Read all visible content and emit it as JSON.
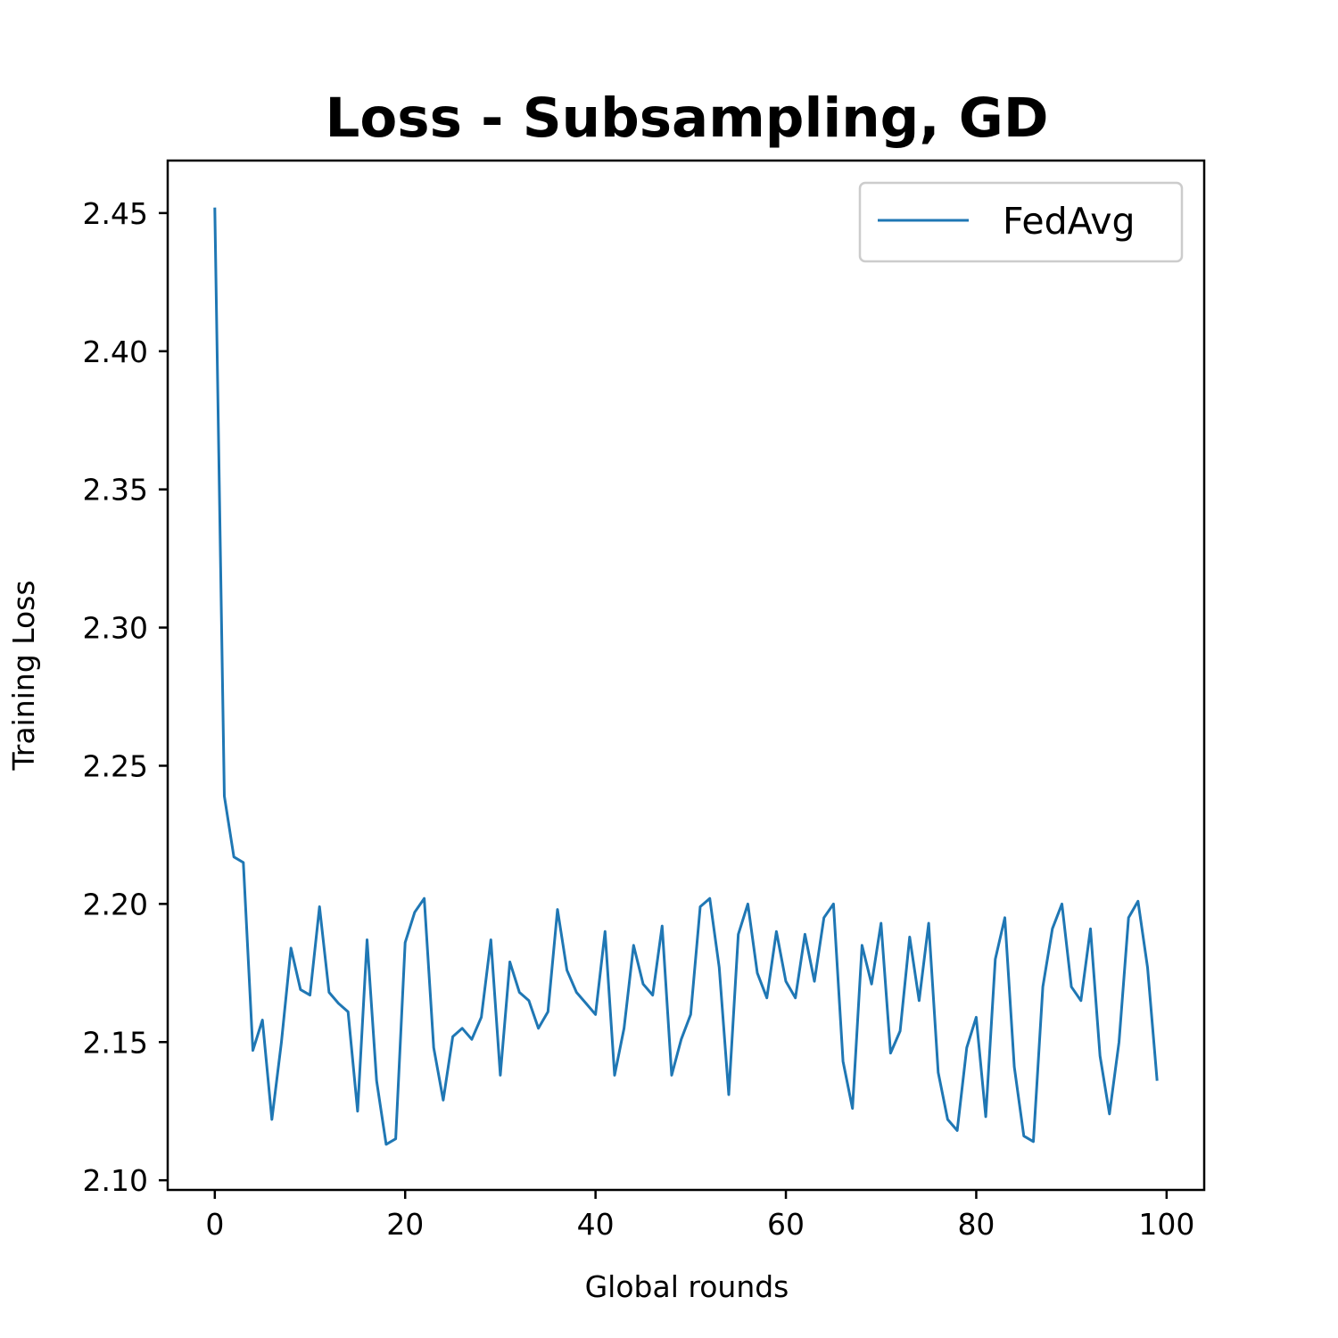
{
  "chart_data": {
    "type": "line",
    "title": "Loss - Subsampling, GD",
    "xlabel": "Global rounds",
    "ylabel": "Training Loss",
    "xlim": [
      -4.95,
      103.95
    ],
    "ylim": [
      2.0965,
      2.469
    ],
    "xticks": [
      0,
      20,
      40,
      60,
      80,
      100
    ],
    "xtick_labels": [
      "0",
      "20",
      "40",
      "60",
      "80",
      "100"
    ],
    "yticks": [
      2.1,
      2.15,
      2.2,
      2.25,
      2.3,
      2.35,
      2.4,
      2.45
    ],
    "ytick_labels": [
      "2.10",
      "2.15",
      "2.20",
      "2.25",
      "2.30",
      "2.35",
      "2.40",
      "2.45"
    ],
    "grid": false,
    "legend_position": "top-right",
    "series": [
      {
        "name": "FedAvg",
        "color": "#1f77b4",
        "x": [
          0,
          1,
          2,
          3,
          4,
          5,
          6,
          7,
          8,
          9,
          10,
          11,
          12,
          13,
          14,
          15,
          16,
          17,
          18,
          19,
          20,
          21,
          22,
          23,
          24,
          25,
          26,
          27,
          28,
          29,
          30,
          31,
          32,
          33,
          34,
          35,
          36,
          37,
          38,
          39,
          40,
          41,
          42,
          43,
          44,
          45,
          46,
          47,
          48,
          49,
          50,
          51,
          52,
          53,
          54,
          55,
          56,
          57,
          58,
          59,
          60,
          61,
          62,
          63,
          64,
          65,
          66,
          67,
          68,
          69,
          70,
          71,
          72,
          73,
          74,
          75,
          76,
          77,
          78,
          79,
          80,
          81,
          82,
          83,
          84,
          85,
          86,
          87,
          88,
          89,
          90,
          91,
          92,
          93,
          94,
          95,
          96,
          97,
          98,
          99
        ],
        "y": [
          2.452,
          2.239,
          2.217,
          2.215,
          2.147,
          2.158,
          2.122,
          2.15,
          2.184,
          2.169,
          2.167,
          2.199,
          2.168,
          2.164,
          2.161,
          2.125,
          2.187,
          2.136,
          2.113,
          2.115,
          2.186,
          2.197,
          2.202,
          2.148,
          2.129,
          2.152,
          2.155,
          2.151,
          2.159,
          2.187,
          2.138,
          2.179,
          2.168,
          2.165,
          2.155,
          2.161,
          2.198,
          2.176,
          2.168,
          2.164,
          2.16,
          2.19,
          2.138,
          2.155,
          2.185,
          2.171,
          2.167,
          2.192,
          2.138,
          2.151,
          2.16,
          2.199,
          2.202,
          2.177,
          2.131,
          2.189,
          2.2,
          2.175,
          2.166,
          2.19,
          2.172,
          2.166,
          2.189,
          2.172,
          2.195,
          2.2,
          2.143,
          2.126,
          2.185,
          2.171,
          2.193,
          2.146,
          2.154,
          2.188,
          2.165,
          2.193,
          2.139,
          2.122,
          2.118,
          2.148,
          2.159,
          2.123,
          2.18,
          2.195,
          2.141,
          2.116,
          2.114,
          2.17,
          2.191,
          2.2,
          2.17,
          2.165,
          2.191,
          2.145,
          2.124,
          2.15,
          2.195,
          2.201,
          2.177,
          2.136
        ]
      }
    ]
  }
}
